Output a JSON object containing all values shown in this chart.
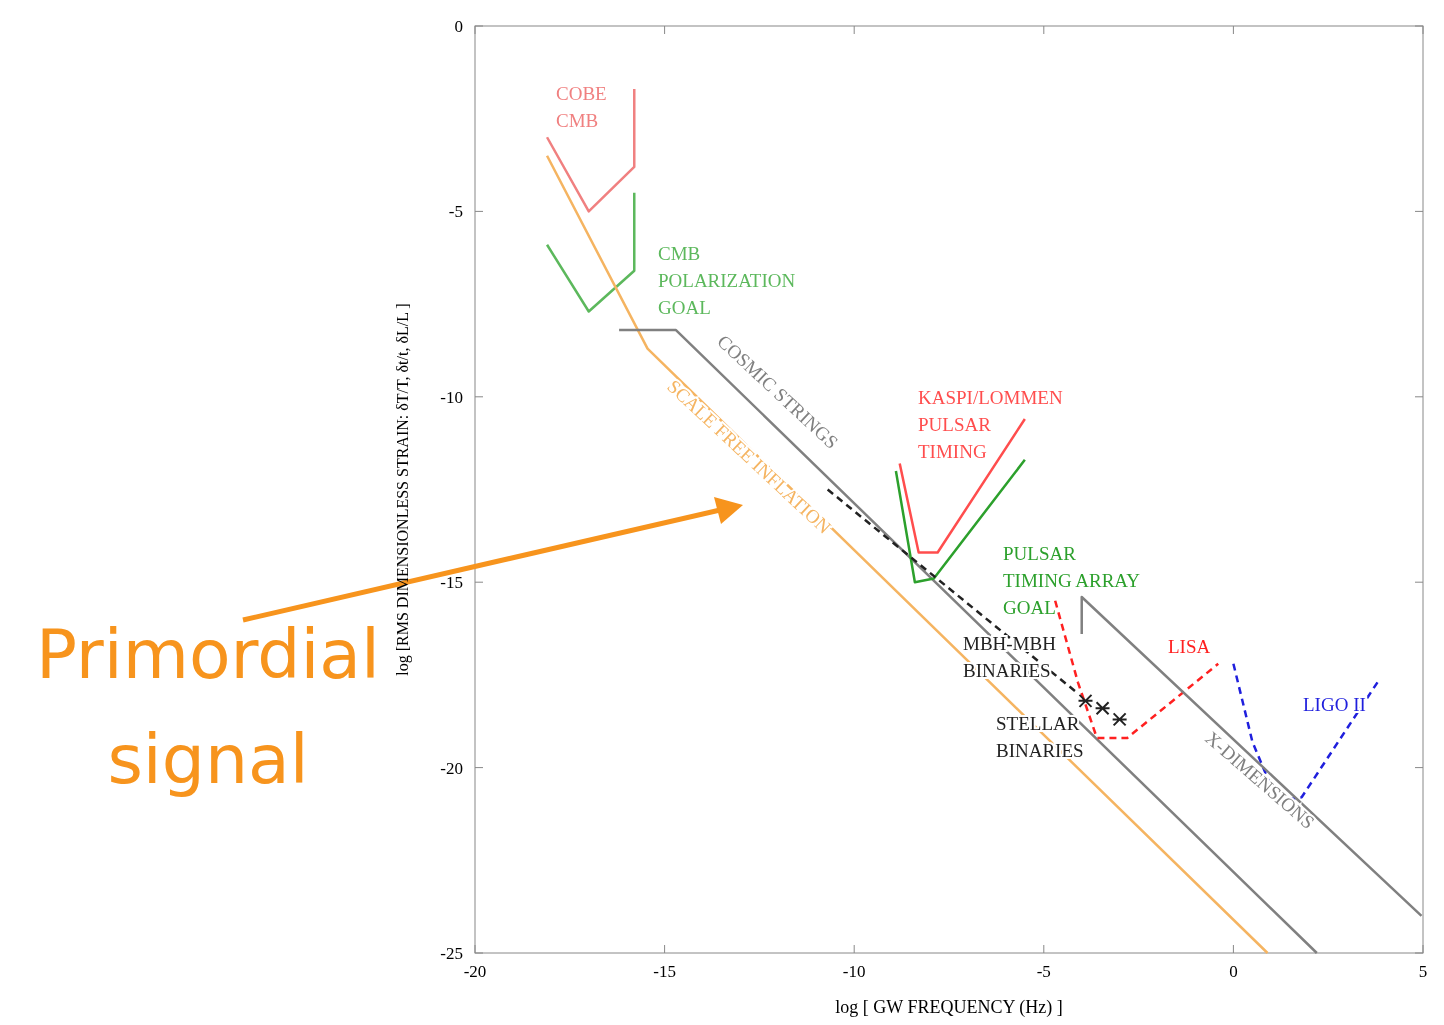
{
  "chart_data": {
    "type": "line",
    "xlabel": "log [ GW FREQUENCY (Hz) ]",
    "ylabel": "log [RMS  DIMENSIONLESS STRAIN: δT/T, δt/t,  δL/L ]",
    "xlim": [
      -20,
      5
    ],
    "ylim": [
      -25,
      0
    ],
    "xticks": [
      -20,
      -15,
      -10,
      -5,
      0,
      5
    ],
    "yticks": [
      0,
      -5,
      -10,
      -15,
      -20,
      -25
    ],
    "grid": false,
    "series": [
      {
        "name": "COBE\nCMB",
        "color": "#f08080",
        "x": [
          -18.1,
          -17.0,
          -15.8,
          -15.8
        ],
        "values": [
          -3.0,
          -5.0,
          -3.8,
          -1.7
        ]
      },
      {
        "name": "CMB\nPOLARIZATION\nGOAL",
        "color": "#5cb85c",
        "x": [
          -18.1,
          -17.0,
          -15.8,
          -15.8
        ],
        "values": [
          -5.9,
          -7.7,
          -6.6,
          -4.5
        ]
      },
      {
        "name": "SCALE FREE INFLATION",
        "color": "#f5b461",
        "x": [
          -18.1,
          -15.45,
          0.9
        ],
        "values": [
          -3.5,
          -8.7,
          -25
        ]
      },
      {
        "name": "COSMIC STRINGS",
        "color": "#808080",
        "x": [
          -16.2,
          -14.7,
          2.2
        ],
        "values": [
          -8.2,
          -8.2,
          -25
        ]
      },
      {
        "name": "KASPI/LOMMEN\nPULSAR\nTIMING",
        "color": "#ff4d4d",
        "x": [
          -8.8,
          -8.3,
          -7.8,
          -5.5
        ],
        "values": [
          -11.8,
          -14.2,
          -14.2,
          -10.6
        ]
      },
      {
        "name": "PULSAR\nTIMING ARRAY\nGOAL",
        "color": "#2ca02c",
        "x": [
          -8.9,
          -8.4,
          -7.9,
          -5.5
        ],
        "values": [
          -12.0,
          -15.0,
          -14.9,
          -11.7
        ]
      },
      {
        "name": "LISA",
        "color": "#ff2020",
        "line_style": "dashed",
        "x": [
          -4.7,
          -4.1,
          -3.6,
          -2.8,
          -0.4
        ],
        "values": [
          -15.5,
          -17.7,
          -19.2,
          -19.2,
          -17.2
        ]
      },
      {
        "name": "LIGO II",
        "color": "#1f1fdd",
        "line_style": "dashed",
        "x": [
          0,
          0.5,
          1.15,
          1.8,
          3.8
        ],
        "values": [
          -17.2,
          -19.3,
          -20.9,
          -20.8,
          -17.7
        ]
      },
      {
        "name": "X-DIMENSIONS",
        "color": "#808080",
        "x": [
          -4.0,
          -4.0,
          4.96
        ],
        "values": [
          -16.4,
          -15.4,
          -24.0
        ]
      },
      {
        "name": "MBH-MBH\nBINARIES",
        "color": "#222222",
        "line_style": "dashed",
        "x": [
          -10.7,
          -4.1
        ],
        "values": [
          -12.5,
          -18.0
        ]
      },
      {
        "name": "STELLAR\nBINARIES",
        "type": "scatter",
        "marker": "cross",
        "color": "#222222",
        "x": [
          -3.9,
          -3.45,
          -3.0
        ],
        "values": [
          -18.2,
          -18.4,
          -18.7
        ]
      }
    ],
    "annotations": [
      "Primordial\nsignal"
    ]
  }
}
